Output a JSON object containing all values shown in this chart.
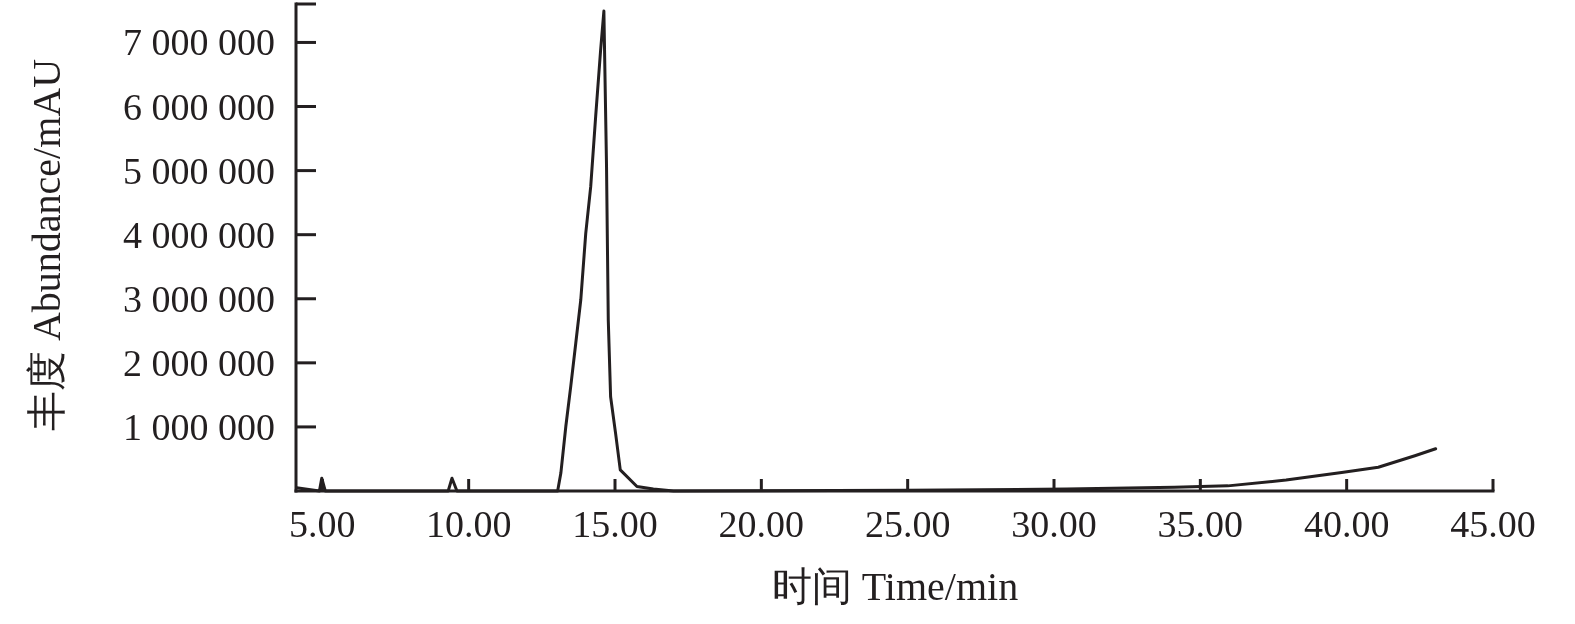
{
  "chart_data": {
    "type": "line",
    "xlabel": "时间 Time/min",
    "ylabel": "丰度 Abundance/mAU",
    "xlim": [
      4.1,
      45
    ],
    "ylim": [
      0,
      7600000
    ],
    "xticks": [
      {
        "value": 5,
        "label": "5.00"
      },
      {
        "value": 10,
        "label": "10.00"
      },
      {
        "value": 15,
        "label": "15.00"
      },
      {
        "value": 20,
        "label": "20.00"
      },
      {
        "value": 25,
        "label": "25.00"
      },
      {
        "value": 30,
        "label": "30.00"
      },
      {
        "value": 35,
        "label": "35.00"
      },
      {
        "value": 40,
        "label": "40.00"
      },
      {
        "value": 45,
        "label": "45.00"
      }
    ],
    "yticks": [
      {
        "value": 1000000,
        "label": "1 000 000"
      },
      {
        "value": 2000000,
        "label": "2 000 000"
      },
      {
        "value": 3000000,
        "label": "3 000 000"
      },
      {
        "value": 4000000,
        "label": "4 000 000"
      },
      {
        "value": 5000000,
        "label": "5 000 000"
      },
      {
        "value": 6000000,
        "label": "6 000 000"
      },
      {
        "value": 7000000,
        "label": "7 000 000"
      }
    ],
    "grid": false,
    "marker": "none",
    "line_style": "solid",
    "series": [
      {
        "color": "#231f20",
        "x": [
          4.12,
          4.9,
          4.98,
          5.1,
          6,
          9.3,
          9.43,
          9.6,
          11,
          13.04,
          13.15,
          13.32,
          13.49,
          13.66,
          13.83,
          14.0,
          14.17,
          14.34,
          14.51,
          14.62,
          14.71,
          14.77,
          14.85,
          15.02,
          15.18,
          15.75,
          16.31,
          17,
          25,
          30.43,
          34.11,
          35.94,
          37.93,
          39.83,
          41.08,
          42.33,
          43.04
        ],
        "values": [
          50000,
          0,
          200000,
          0,
          0,
          0,
          200000,
          0,
          0,
          0,
          280000,
          1010000,
          1640000,
          2310000,
          2980000,
          4020000,
          4750000,
          5850000,
          6890000,
          7490000,
          5070000,
          2670000,
          1470000,
          900000,
          330000,
          70000,
          30000,
          0,
          10000,
          30000,
          60000,
          80000,
          170000,
          290000,
          370000,
          550000,
          660000
        ]
      }
    ]
  }
}
